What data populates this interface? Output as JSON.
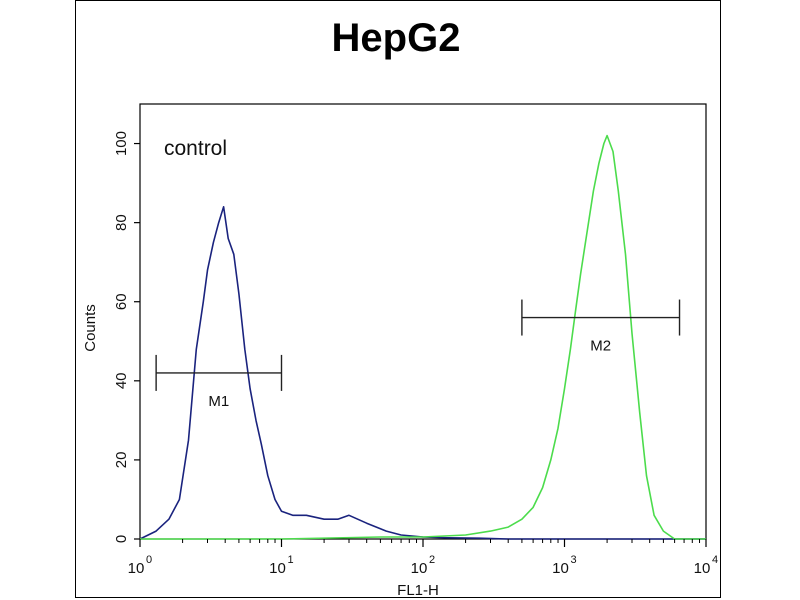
{
  "chart_data": {
    "type": "line",
    "title": "HepG2",
    "xlabel": "FL1-H",
    "ylabel": "Counts",
    "xscale": "log",
    "xlim": [
      1,
      10000
    ],
    "ylim": [
      0,
      110
    ],
    "x_ticks": [
      {
        "base": "10",
        "exp": "0",
        "value": 1
      },
      {
        "base": "10",
        "exp": "1",
        "value": 10
      },
      {
        "base": "10",
        "exp": "2",
        "value": 100
      },
      {
        "base": "10",
        "exp": "3",
        "value": 1000
      },
      {
        "base": "10",
        "exp": "4",
        "value": 10000
      }
    ],
    "y_ticks": [
      "0",
      "20",
      "40",
      "60",
      "80",
      "100"
    ],
    "annotation": "control",
    "series": [
      {
        "color": "#1a237e",
        "x": [
          1.0,
          1.3,
          1.6,
          1.9,
          2.2,
          2.5,
          2.8,
          3.0,
          3.3,
          3.6,
          3.9,
          4.2,
          4.6,
          5.0,
          5.5,
          6.0,
          6.6,
          7.2,
          8.0,
          9.0,
          10,
          12,
          15,
          20,
          25,
          30,
          40,
          55,
          70,
          100,
          150,
          250,
          400,
          1000,
          5000,
          10000
        ],
        "values": [
          0,
          2,
          5,
          10,
          25,
          48,
          60,
          68,
          75,
          80,
          84,
          76,
          72,
          62,
          48,
          38,
          30,
          24,
          16,
          10,
          7,
          6,
          6,
          5,
          5,
          6,
          4,
          2,
          1,
          0.5,
          0.3,
          0.2,
          0,
          0,
          0,
          0
        ]
      },
      {
        "color": "#4cdc4c",
        "x": [
          1,
          10,
          50,
          100,
          200,
          300,
          400,
          500,
          600,
          700,
          800,
          900,
          1000,
          1100,
          1200,
          1300,
          1450,
          1600,
          1750,
          1900,
          2000,
          2200,
          2400,
          2700,
          3000,
          3400,
          3800,
          4300,
          5000,
          6000,
          10000
        ],
        "values": [
          0,
          0,
          0.5,
          0.5,
          1,
          2,
          3,
          5,
          8,
          13,
          20,
          28,
          38,
          48,
          58,
          67,
          78,
          88,
          95,
          100,
          102,
          98,
          88,
          72,
          52,
          32,
          16,
          6,
          2,
          0,
          0
        ]
      }
    ],
    "markers": [
      {
        "label": "M1",
        "x_start": 1.3,
        "x_end": 10,
        "y": 42
      },
      {
        "label": "M2",
        "x_start": 500,
        "x_end": 6500,
        "y": 56
      }
    ],
    "grid": false,
    "legend": "none"
  }
}
